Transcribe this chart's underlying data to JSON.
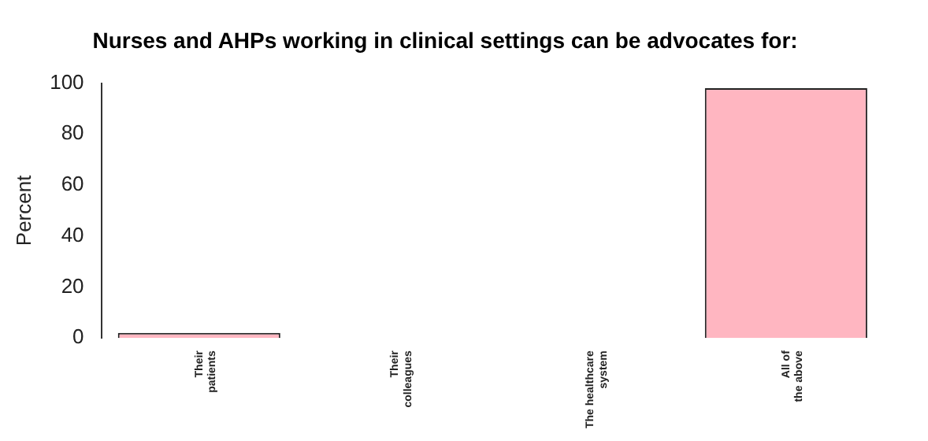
{
  "chart_data": {
    "type": "bar",
    "title": "Nurses and AHPs working in clinical settings can be advocates for:",
    "ylabel": "Percent",
    "categories": [
      "Their\npatients",
      "Their\ncolleagues",
      "The healthcare\nsystem",
      "All of\nthe above"
    ],
    "values": [
      2,
      0,
      0,
      98
    ],
    "color": "#ffb6c1",
    "ylim": [
      0,
      100
    ],
    "yticks": [
      0,
      20,
      40,
      60,
      80,
      100
    ],
    "grid": false,
    "legend": false
  }
}
